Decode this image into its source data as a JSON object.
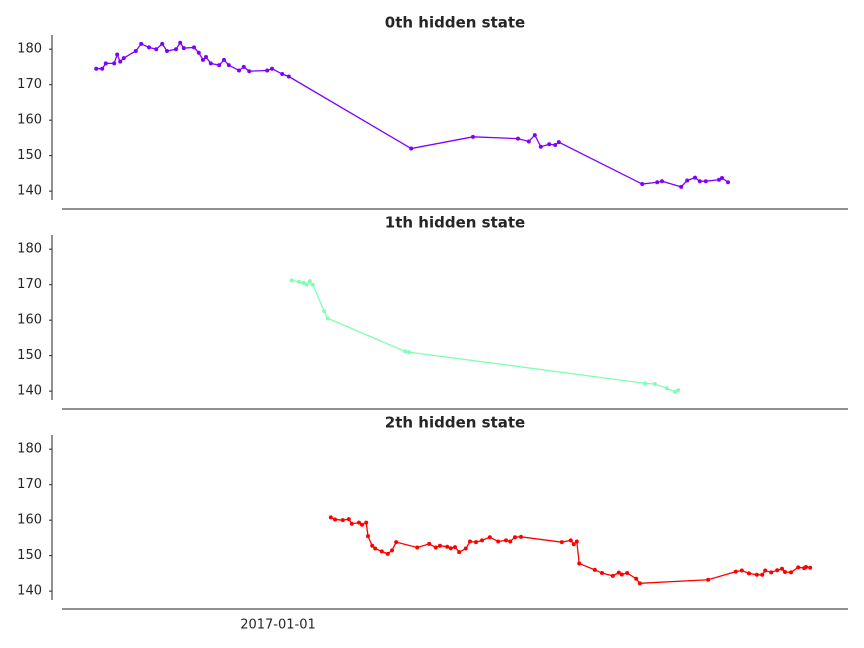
{
  "chart_data": [
    {
      "type": "line",
      "title": "0th hidden state",
      "x": [
        2016.697,
        2016.707,
        2016.713,
        2016.727,
        2016.732,
        2016.737,
        2016.743,
        2016.763,
        2016.772,
        2016.785,
        2016.797,
        2016.807,
        2016.815,
        2016.83,
        2016.837,
        2016.843,
        2016.86,
        2016.868,
        2016.875,
        2016.88,
        2016.888,
        2016.902,
        2016.91,
        2016.918,
        2016.935,
        2016.943,
        2016.952,
        2016.982,
        2016.99,
        2017.007,
        2017.018,
        2017.222,
        2017.325,
        2017.4,
        2017.418,
        2017.428,
        2017.438,
        2017.452,
        2017.462,
        2017.468,
        2017.607,
        2017.632,
        2017.64,
        2017.672,
        2017.682,
        2017.695,
        2017.703,
        2017.713,
        2017.735,
        2017.74,
        2017.75
      ],
      "series": [
        {
          "color": "#8000ff",
          "values": [
            174.5,
            174.5,
            176,
            176,
            178.5,
            176.5,
            177.5,
            179.5,
            181.5,
            180.5,
            180,
            181.5,
            179.5,
            180,
            181.8,
            180.3,
            180.5,
            179,
            177,
            177.8,
            176,
            175.5,
            177,
            175.5,
            174,
            175,
            173.8,
            174,
            174.5,
            173,
            172.3,
            152,
            155.3,
            154.8,
            154,
            155.8,
            152.5,
            153.2,
            153,
            153.8,
            142,
            142.5,
            142.8,
            141.2,
            143,
            143.8,
            142.8,
            142.8,
            143.2,
            143.7,
            142.5
          ]
        }
      ],
      "xlim": [
        2016.64,
        2017.95
      ],
      "ylim": [
        137.5,
        184
      ],
      "yticks": [
        140,
        150,
        160,
        170,
        180
      ]
    },
    {
      "type": "line",
      "title": "1th hidden state",
      "x": [
        2017.023,
        2017.035,
        2017.043,
        2017.048,
        2017.053,
        2017.058,
        2017.077,
        2017.083,
        2017.212,
        2017.218,
        2017.612,
        2017.628,
        2017.648,
        2017.662,
        2017.667
      ],
      "series": [
        {
          "color": "#80ffb4",
          "values": [
            171.2,
            170.8,
            170.5,
            170,
            171,
            170,
            162.5,
            160.5,
            151.2,
            151,
            142.2,
            142,
            140.8,
            139.8,
            140.3
          ]
        }
      ],
      "xlim": [
        2016.64,
        2017.95
      ],
      "ylim": [
        137.5,
        184
      ],
      "yticks": [
        140,
        150,
        160,
        170,
        180
      ]
    },
    {
      "type": "line",
      "title": "2th hidden state",
      "x": [
        2017.088,
        2017.095,
        2017.108,
        2017.118,
        2017.123,
        2017.135,
        2017.14,
        2017.147,
        2017.15,
        2017.157,
        2017.162,
        2017.173,
        2017.183,
        2017.19,
        2017.197,
        2017.232,
        2017.252,
        2017.263,
        2017.27,
        2017.282,
        2017.288,
        2017.295,
        2017.302,
        2017.313,
        2017.32,
        2017.33,
        2017.34,
        2017.353,
        2017.367,
        2017.38,
        2017.387,
        2017.395,
        2017.405,
        2017.473,
        2017.488,
        2017.493,
        2017.498,
        2017.502,
        2017.528,
        2017.54,
        2017.558,
        2017.568,
        2017.573,
        2017.582,
        2017.597,
        2017.603,
        2017.717,
        2017.763,
        2017.773,
        2017.785,
        2017.798,
        2017.807,
        2017.812,
        2017.822,
        2017.832,
        2017.84,
        2017.845,
        2017.855,
        2017.867,
        2017.877,
        2017.88,
        2017.887
      ],
      "series": [
        {
          "color": "#ff0000",
          "values": [
            160.8,
            160.2,
            160,
            160.3,
            159,
            159.3,
            158.7,
            159.3,
            155.5,
            152.8,
            152,
            151.2,
            150.5,
            151.5,
            153.8,
            152.3,
            153.3,
            152.3,
            152.8,
            152.5,
            152.1,
            152.4,
            151,
            152,
            154,
            153.8,
            154.3,
            155.2,
            154,
            154.3,
            154,
            155.2,
            155.3,
            153.8,
            154.3,
            153.2,
            154,
            147.8,
            146,
            145.1,
            144.3,
            145.2,
            144.7,
            145.1,
            143.5,
            142.2,
            143.2,
            145.5,
            145.8,
            145,
            144.6,
            144.6,
            145.8,
            145.3,
            145.9,
            146.3,
            145.4,
            145.3,
            146.7,
            146.5,
            146.8,
            146.6
          ]
        }
      ],
      "xlim": [
        2016.64,
        2017.95
      ],
      "ylim": [
        137.5,
        184
      ],
      "yticks": [
        140,
        150,
        160,
        170,
        180
      ],
      "xticks": [
        {
          "value": 2017.0,
          "label": "2017-01-01"
        }
      ]
    }
  ]
}
